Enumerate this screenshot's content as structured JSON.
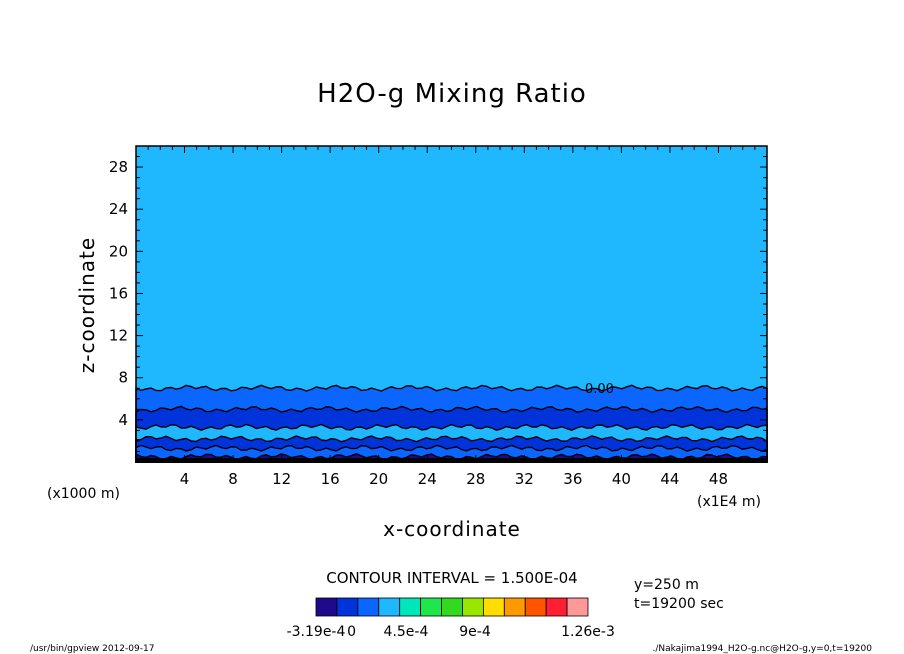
{
  "chart_data": {
    "type": "heatmap",
    "title": "H2O-g Mixing Ratio",
    "xlabel": "x-coordinate",
    "ylabel": "z-coordinate",
    "x_unit_note": "(x1E4 m)",
    "y_unit_note": "(x1000 m)",
    "xlim": [
      0,
      52
    ],
    "ylim": [
      0,
      30
    ],
    "x_ticks": [
      4,
      8,
      12,
      16,
      20,
      24,
      28,
      32,
      36,
      40,
      44,
      48
    ],
    "y_ticks": [
      4,
      8,
      12,
      16,
      20,
      24,
      28
    ],
    "contour_interval_text": "CONTOUR INTERVAL = 1.500E-04",
    "contour_labels": [
      "0.00"
    ],
    "colorbar": {
      "colors": [
        "#1f0a8c",
        "#0033d9",
        "#0a66ff",
        "#1fb8ff",
        "#00e6b8",
        "#1fe64d",
        "#33d91f",
        "#99e600",
        "#ffdd00",
        "#ff9900",
        "#ff5500",
        "#ff1f33",
        "#ff9999"
      ],
      "tick_labels": [
        "-3.19e-4",
        "0",
        "4.5e-4",
        "9e-4",
        "1.26e-3"
      ]
    },
    "bands": [
      {
        "z_top": 7.0,
        "color": "#0a66ff"
      },
      {
        "z_top": 5.0,
        "color": "#0033d9"
      },
      {
        "z_top": 3.3,
        "color": "#1fb8ff"
      },
      {
        "z_top": 2.2,
        "color": "#0033d9"
      },
      {
        "z_top": 1.3,
        "color": "#0a66ff"
      },
      {
        "z_top": 0.5,
        "color": "#1f0a8c"
      }
    ],
    "background_color": "#1fb8ff",
    "info_lines": [
      "y=250 m",
      "t=19200 sec"
    ]
  },
  "footer": {
    "left": "/usr/bin/gpview  2012-09-17",
    "right": "./Nakajima1994_H2O-g.nc@H2O-g,y=0,t=19200"
  }
}
